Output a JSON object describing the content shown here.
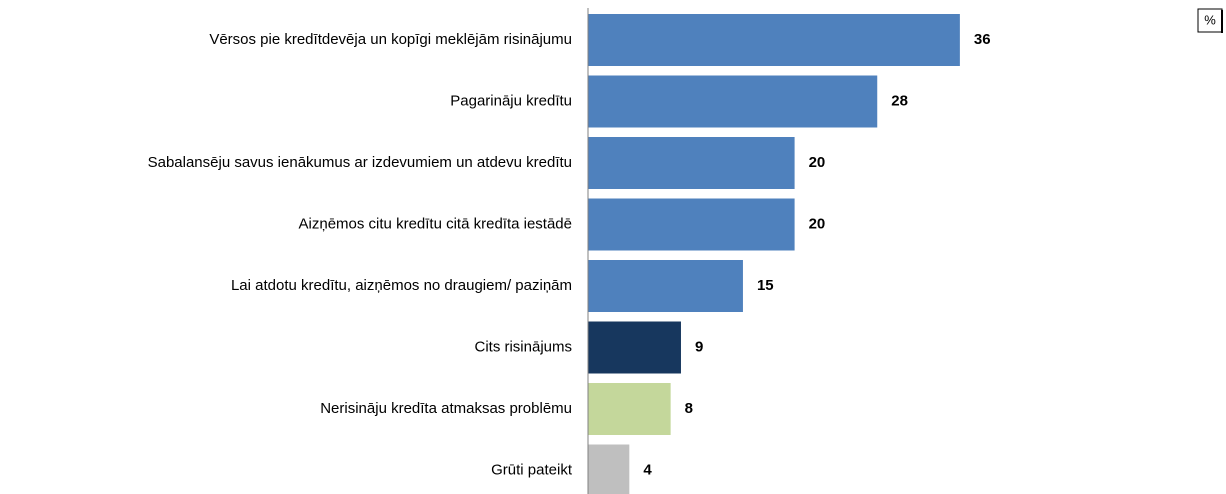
{
  "chart_data": {
    "type": "bar",
    "orientation": "horizontal",
    "unit": "%",
    "categories": [
      "Vērsos pie kredītdevēja un kopīgi meklējām risinājumu",
      "Pagarināju kredītu",
      "Sabalansēju savus ienākumus ar izdevumiem un atdevu kredītu",
      "Aizņēmos citu kredītu citā kredīta iestādē",
      "Lai atdotu kredītu, aizņēmos no draugiem/ paziņām",
      "Cits risinājums",
      "Nerisināju kredīta atmaksas problēmu",
      "Grūti pateikt"
    ],
    "values": [
      36,
      28,
      20,
      20,
      15,
      9,
      8,
      4
    ],
    "colors": [
      "#4f81bd",
      "#4f81bd",
      "#4f81bd",
      "#4f81bd",
      "#4f81bd",
      "#17375e",
      "#c4d79b",
      "#bfbfbf"
    ]
  }
}
